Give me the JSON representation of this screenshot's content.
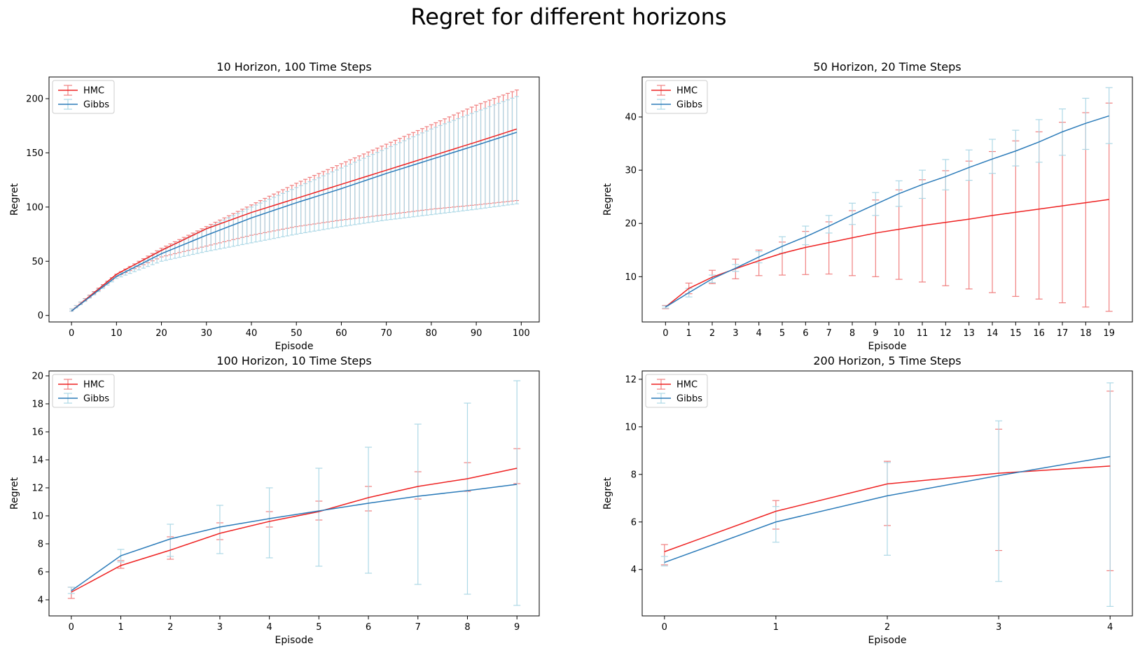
{
  "suptitle": "Regret for different horizons",
  "colors": {
    "hmc": "#ee2222",
    "hmc_err": "#f08080",
    "gibbs": "#2b7bb9",
    "gibbs_err": "#add8e6"
  },
  "chart_data": [
    {
      "type": "line",
      "title": "10 Horizon, 100 Time Steps",
      "xlabel": "Episode",
      "ylabel": "Regret",
      "xlim": [
        -5,
        104
      ],
      "ylim": [
        -6,
        220
      ],
      "xticks": [
        0,
        10,
        20,
        30,
        40,
        50,
        60,
        70,
        80,
        90,
        100
      ],
      "yticks": [
        0,
        50,
        100,
        150,
        200
      ],
      "legend": {
        "placement": "upper-left",
        "entries": [
          "HMC",
          "Gibbs"
        ]
      },
      "generated": {
        "n": 100,
        "x_start": 0,
        "x_step": 1
      },
      "series": [
        {
          "name": "HMC",
          "anchors_x": [
            0,
            10,
            20,
            30,
            40,
            50,
            60,
            70,
            80,
            90,
            99
          ],
          "mean": [
            4,
            38,
            60,
            80,
            95,
            108,
            121,
            134,
            147,
            160,
            172
          ],
          "lower": [
            4,
            36,
            54,
            64,
            74,
            82,
            88,
            93,
            98,
            102,
            106
          ],
          "upper": [
            6,
            38,
            62,
            82,
            102,
            122,
            140,
            158,
            176,
            194,
            208
          ]
        },
        {
          "name": "Gibbs",
          "anchors_x": [
            0,
            10,
            20,
            30,
            40,
            50,
            60,
            70,
            80,
            90,
            99
          ],
          "mean": [
            4,
            36,
            57,
            74,
            90,
            104,
            117,
            131,
            144,
            157,
            169
          ],
          "lower": [
            4,
            34,
            50,
            59,
            67,
            75,
            82,
            88,
            93,
            98,
            103
          ],
          "upper": [
            6,
            37,
            60,
            80,
            100,
            118,
            136,
            154,
            172,
            188,
            202
          ]
        }
      ]
    },
    {
      "type": "line",
      "title": "50 Horizon, 20 Time Steps",
      "xlabel": "Episode",
      "ylabel": "Regret",
      "xlim": [
        -1,
        20
      ],
      "ylim": [
        1.5,
        47.5
      ],
      "xticks": [
        0,
        1,
        2,
        3,
        4,
        5,
        6,
        7,
        8,
        9,
        10,
        11,
        12,
        13,
        14,
        15,
        16,
        17,
        18,
        19
      ],
      "yticks": [
        10,
        20,
        30,
        40
      ],
      "legend": {
        "placement": "upper-left",
        "entries": [
          "HMC",
          "Gibbs"
        ]
      },
      "series": [
        {
          "name": "HMC",
          "x": [
            0,
            1,
            2,
            3,
            4,
            5,
            6,
            7,
            8,
            9,
            10,
            11,
            12,
            13,
            14,
            15,
            16,
            17,
            18,
            19
          ],
          "mean": [
            4.3,
            7.8,
            9.9,
            11.5,
            13.0,
            14.4,
            15.5,
            16.4,
            17.3,
            18.2,
            18.9,
            19.6,
            20.2,
            20.8,
            21.5,
            22.1,
            22.7,
            23.3,
            23.9,
            24.5
          ],
          "lower": [
            4.0,
            6.8,
            8.7,
            9.6,
            10.2,
            10.3,
            10.4,
            10.5,
            10.2,
            10.0,
            9.5,
            9.0,
            8.3,
            7.7,
            7.0,
            6.3,
            5.8,
            5.1,
            4.3,
            3.5
          ],
          "upper": [
            4.6,
            8.8,
            11.2,
            13.3,
            15.0,
            16.5,
            18.5,
            20.3,
            22.4,
            24.4,
            26.3,
            28.2,
            29.9,
            31.7,
            33.5,
            35.5,
            37.2,
            39.0,
            40.8,
            42.6
          ]
        },
        {
          "name": "Gibbs",
          "x": [
            0,
            1,
            2,
            3,
            4,
            5,
            6,
            7,
            8,
            9,
            10,
            11,
            12,
            13,
            14,
            15,
            16,
            17,
            18,
            19
          ],
          "mean": [
            4.3,
            7.0,
            9.6,
            11.6,
            13.7,
            15.7,
            17.5,
            19.5,
            21.6,
            23.6,
            25.6,
            27.3,
            28.8,
            30.5,
            32.1,
            33.6,
            35.3,
            37.2,
            38.8,
            40.2
          ],
          "lower": [
            4.1,
            6.2,
            8.9,
            11.0,
            12.6,
            14.4,
            16.0,
            18.2,
            19.8,
            21.5,
            23.2,
            24.7,
            26.3,
            28.1,
            29.4,
            30.8,
            31.5,
            32.8,
            33.9,
            35.0
          ],
          "upper": [
            4.5,
            7.8,
            10.3,
            12.3,
            14.7,
            17.5,
            19.5,
            21.5,
            23.8,
            25.8,
            28.0,
            30.0,
            32.0,
            33.8,
            35.8,
            37.5,
            39.5,
            41.5,
            43.5,
            45.5
          ]
        }
      ]
    },
    {
      "type": "line",
      "title": "100 Horizon, 10 Time Steps",
      "xlabel": "Episode",
      "ylabel": "Regret",
      "xlim": [
        -0.45,
        9.45
      ],
      "ylim": [
        2.85,
        20.35
      ],
      "xticks": [
        0,
        1,
        2,
        3,
        4,
        5,
        6,
        7,
        8,
        9
      ],
      "yticks": [
        4,
        6,
        8,
        10,
        12,
        14,
        16,
        18,
        20
      ],
      "legend": {
        "placement": "upper-left",
        "entries": [
          "HMC",
          "Gibbs"
        ]
      },
      "series": [
        {
          "name": "HMC",
          "x": [
            0,
            1,
            2,
            3,
            4,
            5,
            6,
            7,
            8,
            9
          ],
          "mean": [
            4.55,
            6.45,
            7.55,
            8.75,
            9.6,
            10.3,
            11.3,
            12.1,
            12.65,
            13.4
          ],
          "lower": [
            4.1,
            6.25,
            6.9,
            8.3,
            9.2,
            9.7,
            10.35,
            11.2,
            11.75,
            12.3
          ],
          "upper": [
            4.9,
            6.8,
            8.5,
            9.5,
            10.3,
            11.05,
            12.1,
            13.15,
            13.8,
            14.8
          ]
        },
        {
          "name": "Gibbs",
          "x": [
            0,
            1,
            2,
            3,
            4,
            5,
            6,
            7,
            8,
            9
          ],
          "mean": [
            4.65,
            7.15,
            8.35,
            9.2,
            9.8,
            10.35,
            10.9,
            11.4,
            11.8,
            12.25
          ],
          "lower": [
            4.45,
            6.7,
            7.1,
            7.3,
            7.0,
            6.4,
            5.9,
            5.1,
            4.4,
            3.6
          ],
          "upper": [
            4.9,
            7.6,
            9.4,
            10.75,
            12.0,
            13.4,
            14.9,
            16.55,
            18.05,
            19.65
          ]
        }
      ]
    },
    {
      "type": "line",
      "title": "200 Horizon, 5 Time Steps",
      "xlabel": "Episode",
      "ylabel": "Regret",
      "xlim": [
        -0.2,
        4.2
      ],
      "ylim": [
        2.05,
        12.35
      ],
      "xticks": [
        0,
        1,
        2,
        3,
        4
      ],
      "yticks": [
        4,
        6,
        8,
        10,
        12
      ],
      "legend": {
        "placement": "upper-left",
        "entries": [
          "HMC",
          "Gibbs"
        ]
      },
      "series": [
        {
          "name": "HMC",
          "x": [
            0,
            1,
            2,
            3,
            4
          ],
          "mean": [
            4.75,
            6.45,
            7.6,
            8.05,
            8.35
          ],
          "lower": [
            4.2,
            5.7,
            5.85,
            4.8,
            3.95
          ],
          "upper": [
            5.05,
            6.9,
            8.55,
            9.9,
            11.5
          ]
        },
        {
          "name": "Gibbs",
          "x": [
            0,
            1,
            2,
            3,
            4
          ],
          "mean": [
            4.3,
            6.0,
            7.1,
            7.95,
            8.75
          ],
          "lower": [
            4.15,
            5.15,
            4.6,
            3.5,
            2.45
          ],
          "upper": [
            4.55,
            6.65,
            8.5,
            10.25,
            11.85
          ]
        }
      ]
    }
  ]
}
